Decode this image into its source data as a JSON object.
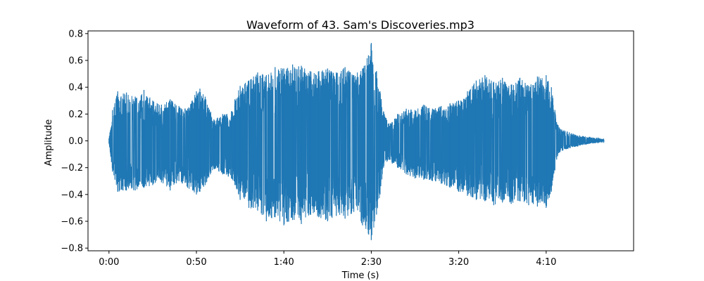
{
  "chart_data": {
    "type": "area",
    "title": "Waveform of 43. Sam's Discoveries.mp3",
    "xlabel": "Time (s)",
    "ylabel": "Amplitude",
    "xlim": [
      -12,
      300
    ],
    "ylim": [
      -0.82,
      0.82
    ],
    "x_ticks": [
      0,
      50,
      100,
      150,
      200,
      250
    ],
    "x_tick_labels": [
      "0:00",
      "0:50",
      "1:40",
      "2:30",
      "3:20",
      "4:10"
    ],
    "y_ticks": [
      -0.8,
      -0.6,
      -0.4,
      -0.2,
      0.0,
      0.2,
      0.4,
      0.6,
      0.8
    ],
    "y_tick_labels": [
      "−0.8",
      "−0.6",
      "−0.4",
      "−0.2",
      "0.0",
      "0.2",
      "0.4",
      "0.6",
      "0.8"
    ],
    "grid": false,
    "color": "#1f77b4",
    "series": [
      {
        "x": [
          0,
          2,
          5,
          10,
          15,
          20,
          25,
          30,
          35,
          40,
          45,
          50,
          52,
          55,
          60,
          65,
          70,
          72,
          75,
          80,
          85,
          90,
          95,
          100,
          105,
          110,
          115,
          120,
          125,
          130,
          135,
          140,
          145,
          150,
          153,
          155,
          157,
          160,
          162,
          165,
          170,
          175,
          180,
          185,
          190,
          195,
          200,
          205,
          210,
          215,
          220,
          225,
          230,
          235,
          240,
          245,
          250,
          253,
          255,
          256,
          258,
          262,
          268,
          275,
          280,
          283
        ],
        "upper": [
          0.02,
          0.23,
          0.37,
          0.36,
          0.33,
          0.38,
          0.3,
          0.27,
          0.31,
          0.26,
          0.24,
          0.37,
          0.39,
          0.33,
          0.16,
          0.2,
          0.22,
          0.31,
          0.41,
          0.45,
          0.51,
          0.49,
          0.55,
          0.54,
          0.57,
          0.56,
          0.52,
          0.52,
          0.54,
          0.51,
          0.55,
          0.49,
          0.54,
          0.73,
          0.52,
          0.37,
          0.22,
          0.13,
          0.14,
          0.2,
          0.24,
          0.23,
          0.27,
          0.24,
          0.26,
          0.28,
          0.3,
          0.37,
          0.45,
          0.49,
          0.44,
          0.47,
          0.42,
          0.47,
          0.41,
          0.48,
          0.49,
          0.4,
          0.23,
          0.14,
          0.09,
          0.07,
          0.04,
          0.03,
          0.02,
          0.01
        ],
        "lower": [
          -0.02,
          -0.23,
          -0.38,
          -0.37,
          -0.37,
          -0.35,
          -0.33,
          -0.31,
          -0.37,
          -0.3,
          -0.35,
          -0.4,
          -0.38,
          -0.33,
          -0.21,
          -0.25,
          -0.28,
          -0.33,
          -0.44,
          -0.5,
          -0.52,
          -0.6,
          -0.57,
          -0.63,
          -0.59,
          -0.62,
          -0.55,
          -0.57,
          -0.6,
          -0.56,
          -0.58,
          -0.53,
          -0.63,
          -0.74,
          -0.55,
          -0.4,
          -0.2,
          -0.14,
          -0.17,
          -0.2,
          -0.25,
          -0.28,
          -0.29,
          -0.3,
          -0.32,
          -0.35,
          -0.38,
          -0.41,
          -0.44,
          -0.45,
          -0.48,
          -0.46,
          -0.47,
          -0.45,
          -0.48,
          -0.49,
          -0.5,
          -0.38,
          -0.22,
          -0.14,
          -0.08,
          -0.06,
          -0.04,
          -0.02,
          -0.015,
          -0.01
        ]
      }
    ]
  }
}
